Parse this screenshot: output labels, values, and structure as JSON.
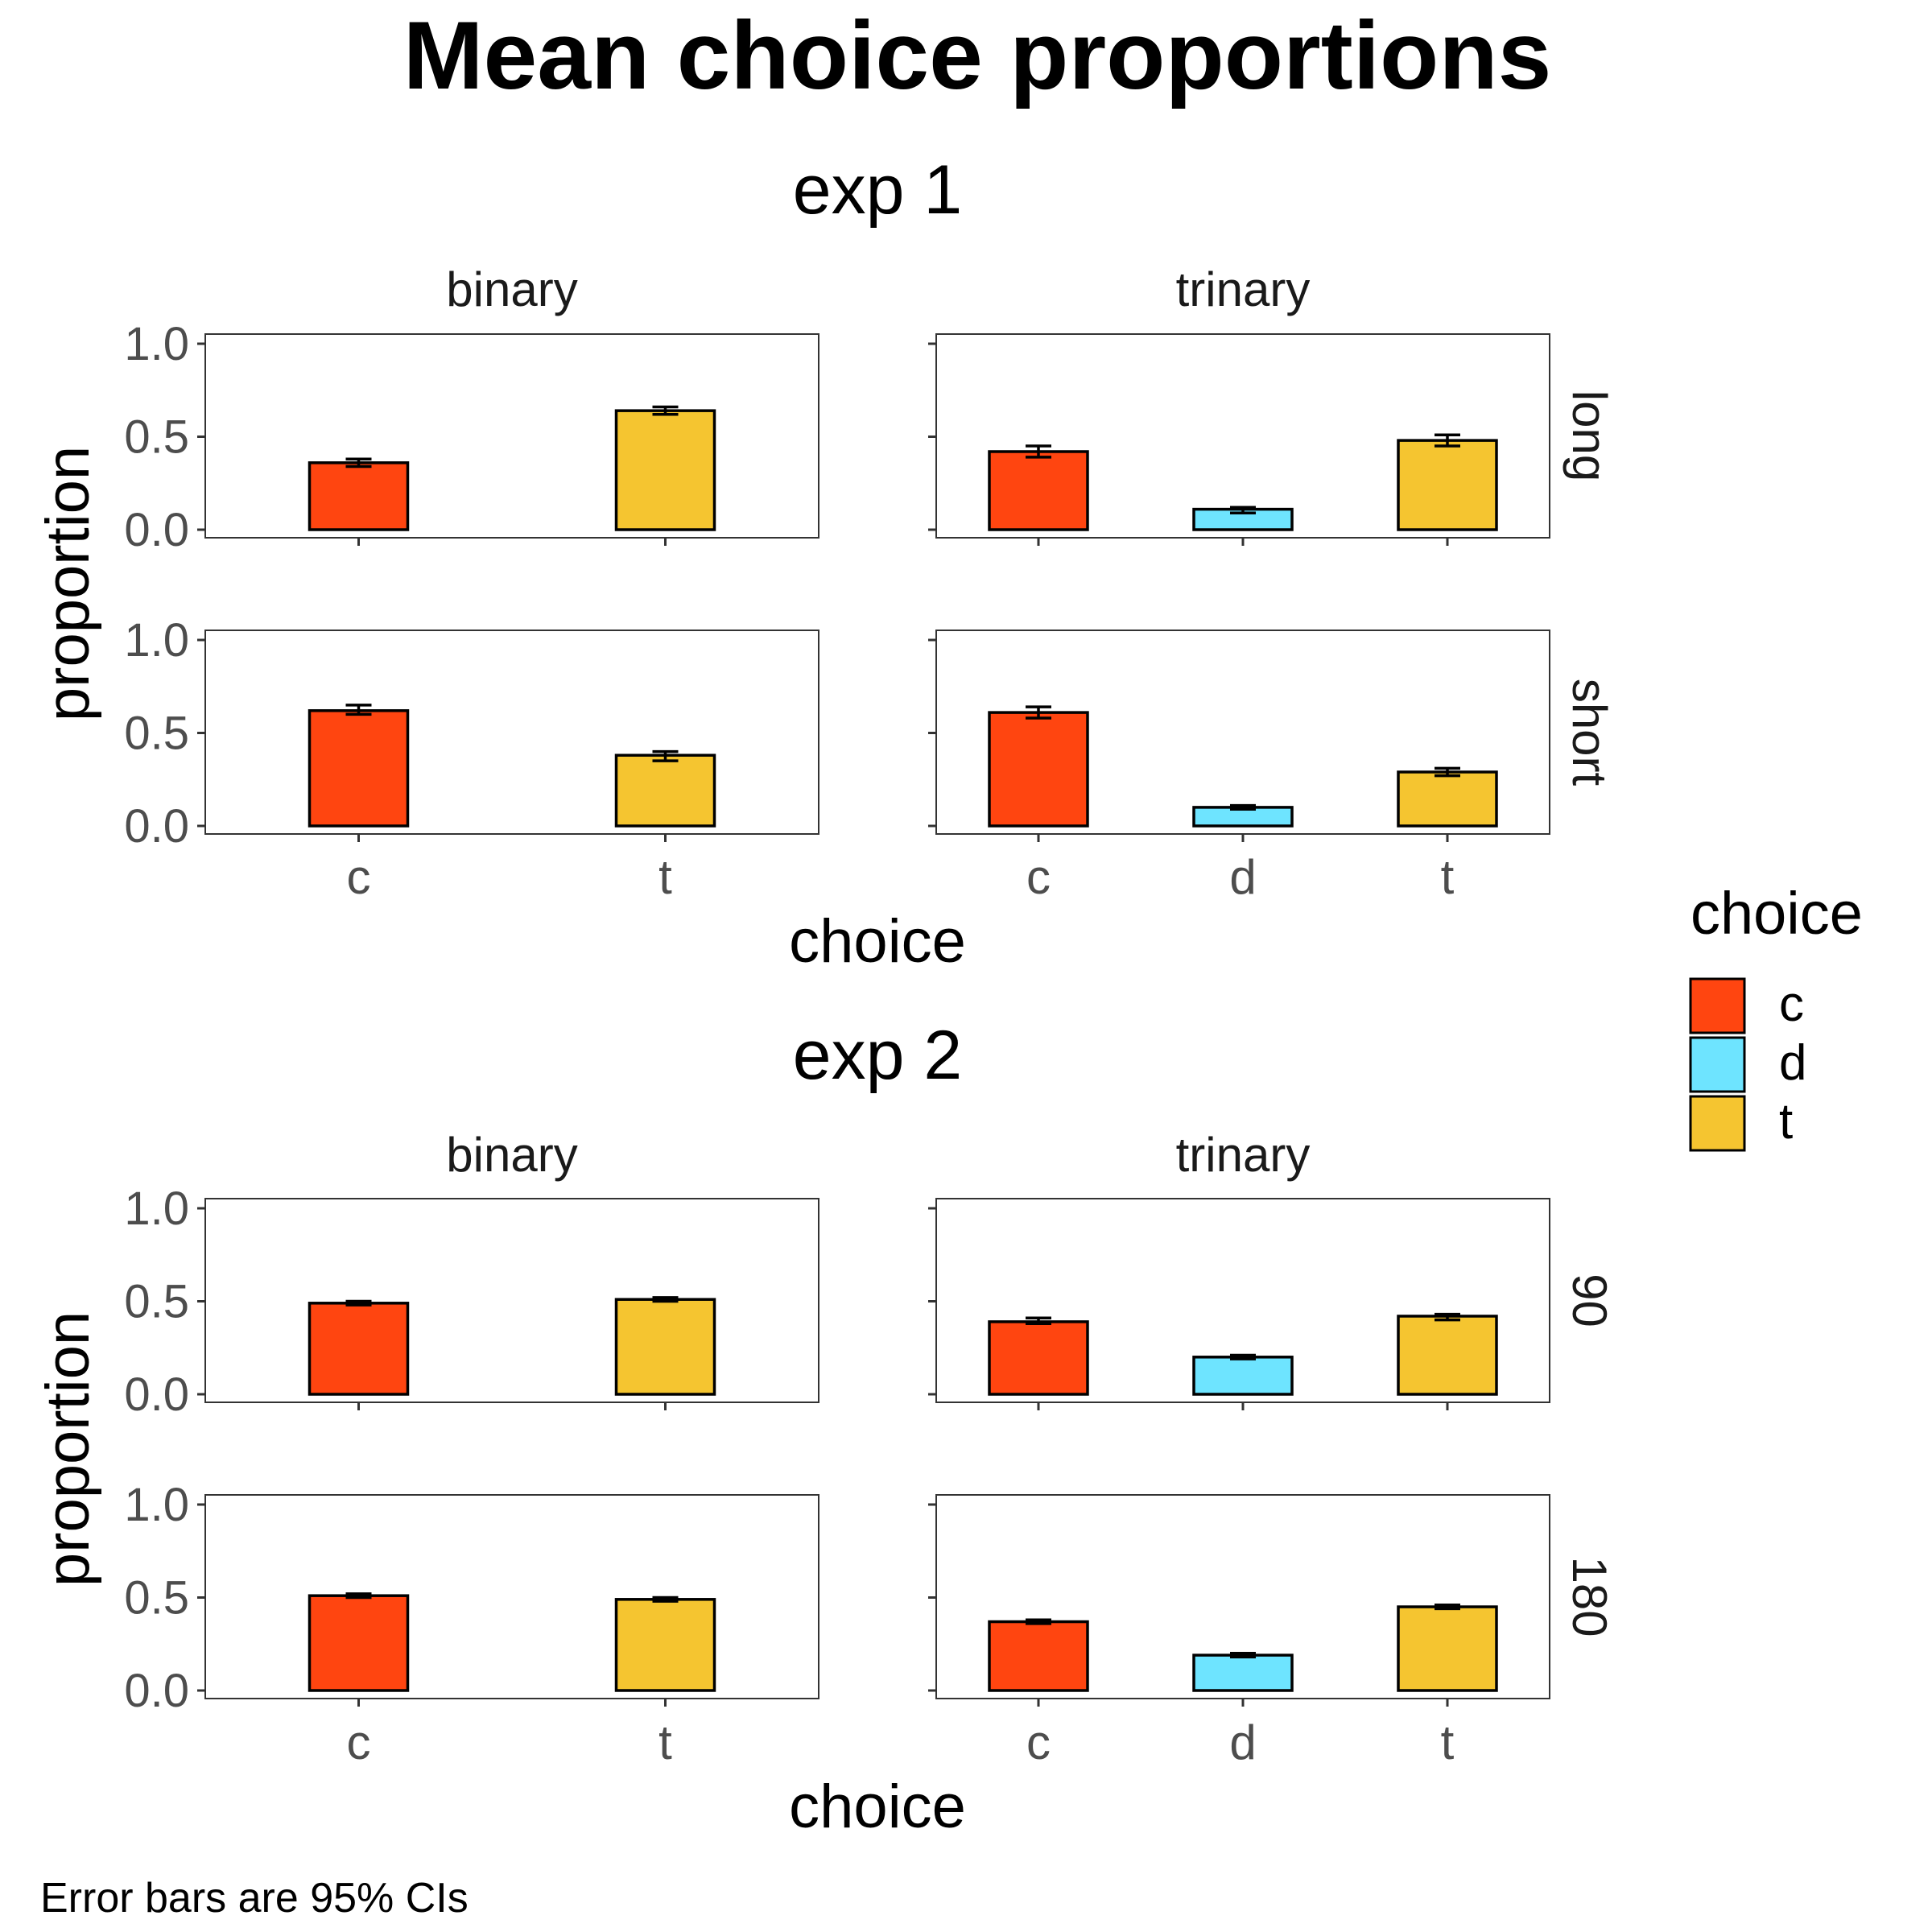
{
  "title": "Mean choice proportions",
  "caption": "Error bars are 95% CIs",
  "colors": {
    "c": "#FF4510",
    "d": "#6EE4FF",
    "t": "#F5C530"
  },
  "legend": {
    "title": "choice",
    "items": [
      "c",
      "d",
      "t"
    ],
    "placement": "right"
  },
  "chart_data": [
    {
      "type": "bar",
      "title": "exp 1",
      "xlabel": "choice",
      "ylabel": "proportion",
      "ylim": [
        0,
        1
      ],
      "yticks": [
        "0.0",
        "0.5",
        "1.0"
      ],
      "columns": [
        "binary",
        "trinary"
      ],
      "rows": [
        "long",
        "short"
      ],
      "panels": [
        {
          "column": "binary",
          "row": "long",
          "categories": [
            "c",
            "t"
          ],
          "values": [
            0.36,
            0.64
          ],
          "ci": [
            [
              0.34,
              0.38
            ],
            [
              0.62,
              0.66
            ]
          ]
        },
        {
          "column": "trinary",
          "row": "long",
          "categories": [
            "c",
            "d",
            "t"
          ],
          "values": [
            0.42,
            0.11,
            0.48
          ],
          "ci": [
            [
              0.39,
              0.45
            ],
            [
              0.09,
              0.12
            ],
            [
              0.45,
              0.51
            ]
          ]
        },
        {
          "column": "binary",
          "row": "short",
          "categories": [
            "c",
            "t"
          ],
          "values": [
            0.62,
            0.38
          ],
          "ci": [
            [
              0.6,
              0.65
            ],
            [
              0.35,
              0.4
            ]
          ]
        },
        {
          "column": "trinary",
          "row": "short",
          "categories": [
            "c",
            "d",
            "t"
          ],
          "values": [
            0.61,
            0.1,
            0.29
          ],
          "ci": [
            [
              0.58,
              0.64
            ],
            [
              0.09,
              0.11
            ],
            [
              0.27,
              0.31
            ]
          ]
        }
      ]
    },
    {
      "type": "bar",
      "title": "exp 2",
      "xlabel": "choice",
      "ylabel": "proportion",
      "ylim": [
        0,
        1
      ],
      "yticks": [
        "0.0",
        "0.5",
        "1.0"
      ],
      "columns": [
        "binary",
        "trinary"
      ],
      "rows": [
        "90",
        "180"
      ],
      "panels": [
        {
          "column": "binary",
          "row": "90",
          "categories": [
            "c",
            "t"
          ],
          "values": [
            0.49,
            0.51
          ],
          "ci": [
            [
              0.48,
              0.5
            ],
            [
              0.5,
              0.52
            ]
          ]
        },
        {
          "column": "trinary",
          "row": "90",
          "categories": [
            "c",
            "d",
            "t"
          ],
          "values": [
            0.39,
            0.2,
            0.42
          ],
          "ci": [
            [
              0.38,
              0.41
            ],
            [
              0.19,
              0.21
            ],
            [
              0.4,
              0.43
            ]
          ]
        },
        {
          "column": "binary",
          "row": "180",
          "categories": [
            "c",
            "t"
          ],
          "values": [
            0.51,
            0.49
          ],
          "ci": [
            [
              0.5,
              0.52
            ],
            [
              0.48,
              0.5
            ]
          ]
        },
        {
          "column": "trinary",
          "row": "180",
          "categories": [
            "c",
            "d",
            "t"
          ],
          "values": [
            0.37,
            0.19,
            0.45
          ],
          "ci": [
            [
              0.36,
              0.38
            ],
            [
              0.18,
              0.2
            ],
            [
              0.44,
              0.46
            ]
          ]
        }
      ]
    }
  ]
}
